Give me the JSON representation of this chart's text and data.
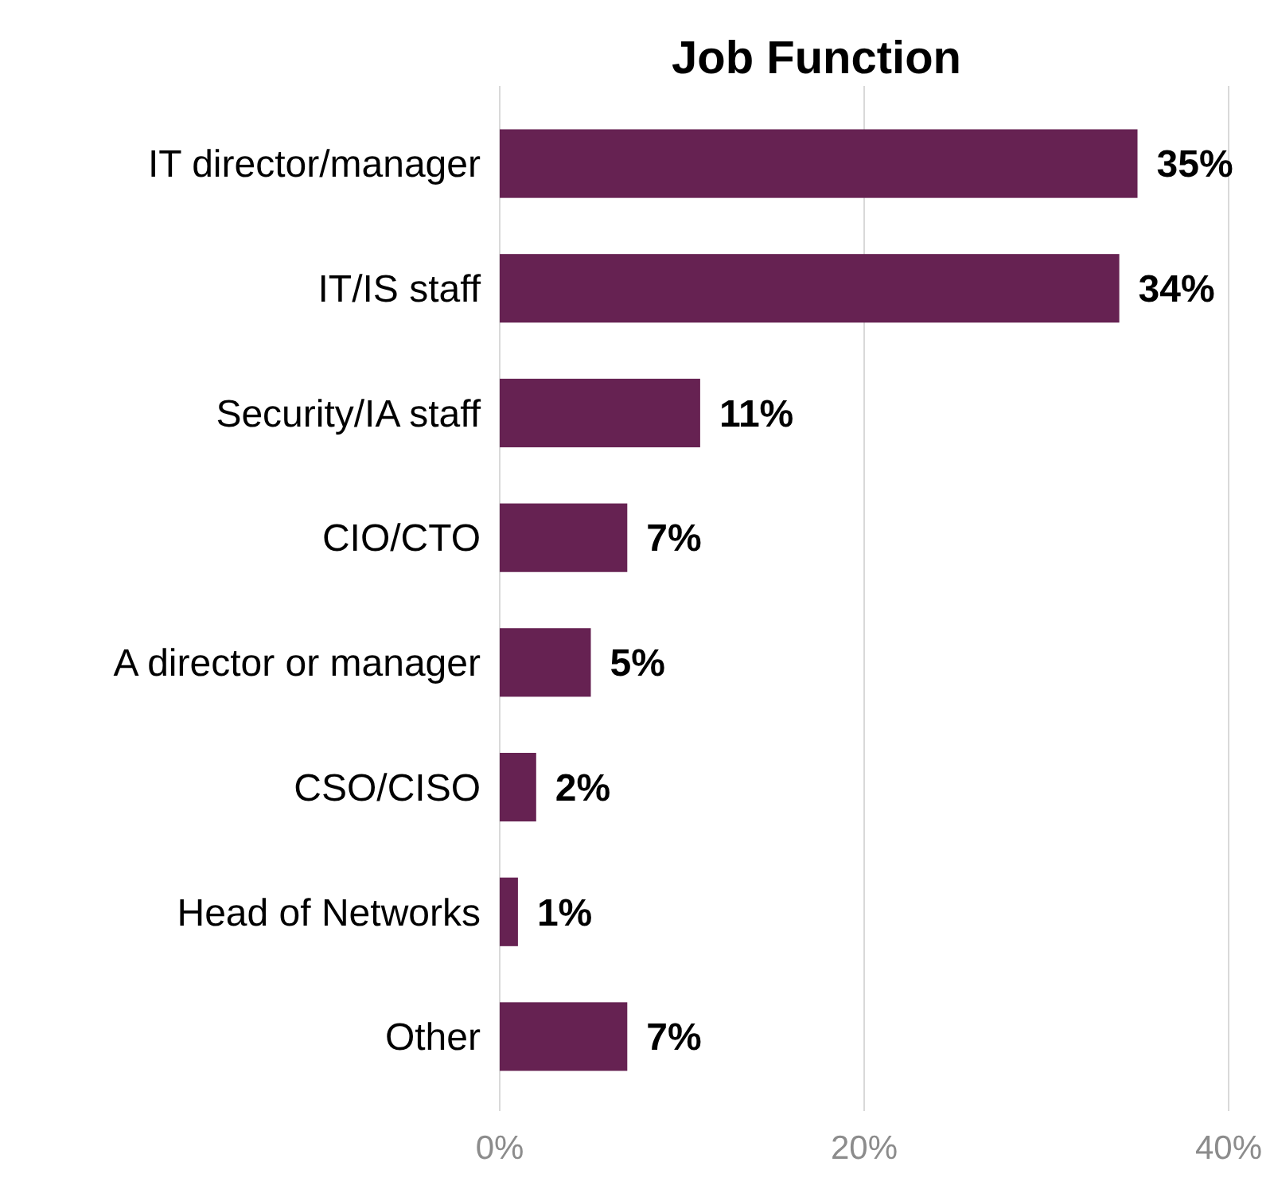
{
  "chart_data": {
    "type": "bar",
    "orientation": "horizontal",
    "title": "Job Function",
    "categories": [
      "IT director/manager",
      "IT/IS staff",
      "Security/IA staff",
      "CIO/CTO",
      "A director or manager",
      "CSO/CISO",
      "Head of Networks",
      "Other"
    ],
    "values": [
      35,
      34,
      11,
      7,
      5,
      2,
      1,
      7
    ],
    "color": "#662252",
    "data_labels": true,
    "value_labels": [
      "35%",
      "34%",
      "11%",
      "7%",
      "5%",
      "2%",
      "1%",
      "7%"
    ],
    "xlim": [
      0,
      40
    ],
    "xticks": [
      {
        "value": 0,
        "label": "0%"
      },
      {
        "value": 20,
        "label": "20%"
      },
      {
        "value": 40,
        "label": "40%"
      }
    ],
    "grid": "x"
  }
}
